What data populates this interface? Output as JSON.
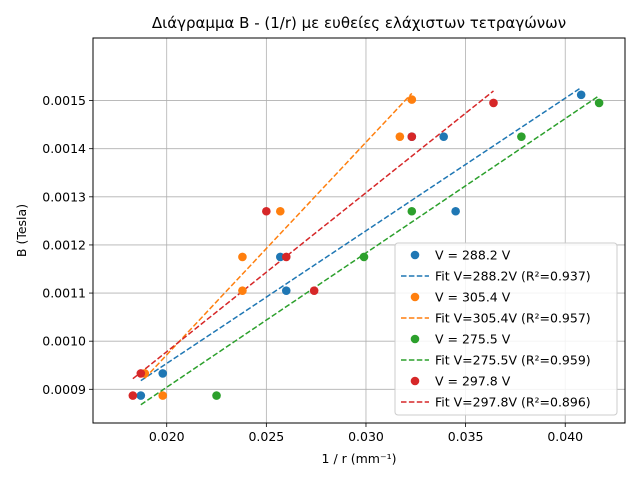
{
  "chart_data": {
    "type": "scatter",
    "title": "Διάγραμμα B - (1/r) με ευθείες ελάχιστων τετραγώνων",
    "xlabel": "1 / r (mm⁻¹)",
    "ylabel": "B (Tesla)",
    "xlim": [
      0.0163,
      0.043
    ],
    "ylim": [
      0.00083,
      0.00163
    ],
    "xticks": [
      0.02,
      0.025,
      0.03,
      0.035,
      0.04
    ],
    "xtick_labels": [
      "0.020",
      "0.025",
      "0.030",
      "0.035",
      "0.040"
    ],
    "yticks": [
      0.0009,
      0.001,
      0.0011,
      0.0012,
      0.0013,
      0.0014,
      0.0015
    ],
    "ytick_labels": [
      "0.0009",
      "0.0010",
      "0.0011",
      "0.0012",
      "0.0013",
      "0.0014",
      "0.0015"
    ],
    "grid": true,
    "legend_position": "bottom-right",
    "series": [
      {
        "name": "V = 288.2 V",
        "color": "#1f77b4",
        "x": [
          0.0187,
          0.0198,
          0.0257,
          0.026,
          0.0323,
          0.0339,
          0.0345,
          0.0408
        ],
        "y": [
          0.000887,
          0.000933,
          0.001175,
          0.001105,
          0.001425,
          0.001425,
          0.00127,
          0.001512
        ],
        "fit": {
          "name": "Fit V=288.2V (R²=0.937)",
          "x": [
            0.0187,
            0.0408
          ],
          "y": [
            0.000918,
            0.001527
          ]
        }
      },
      {
        "name": "V = 305.4 V",
        "color": "#ff7f0e",
        "x": [
          0.0189,
          0.0198,
          0.0238,
          0.0238,
          0.0257,
          0.0317,
          0.0323
        ],
        "y": [
          0.000933,
          0.000887,
          0.001175,
          0.001105,
          0.00127,
          0.001425,
          0.001502
        ],
        "fit": {
          "name": "Fit V=305.4V (R²=0.957)",
          "x": [
            0.0189,
            0.0323
          ],
          "y": [
            0.000923,
            0.001515
          ]
        }
      },
      {
        "name": "V = 275.5 V",
        "color": "#2ca02c",
        "x": [
          0.0225,
          0.0299,
          0.0323,
          0.0378,
          0.0417
        ],
        "y": [
          0.000887,
          0.001175,
          0.00127,
          0.001425,
          0.001495
        ],
        "fit": {
          "name": "Fit V=275.5V (R²=0.959)",
          "x": [
            0.0187,
            0.0417
          ],
          "y": [
            0.000868,
            0.00151
          ]
        }
      },
      {
        "name": "V = 297.8 V",
        "color": "#d62728",
        "x": [
          0.0183,
          0.0187,
          0.025,
          0.026,
          0.0274,
          0.0323,
          0.0364
        ],
        "y": [
          0.000887,
          0.000933,
          0.00127,
          0.001175,
          0.001105,
          0.001425,
          0.001495
        ],
        "fit": {
          "name": "Fit V=297.8V (R²=0.896)",
          "x": [
            0.0183,
            0.0364
          ],
          "y": [
            0.000922,
            0.00152
          ]
        }
      }
    ]
  }
}
